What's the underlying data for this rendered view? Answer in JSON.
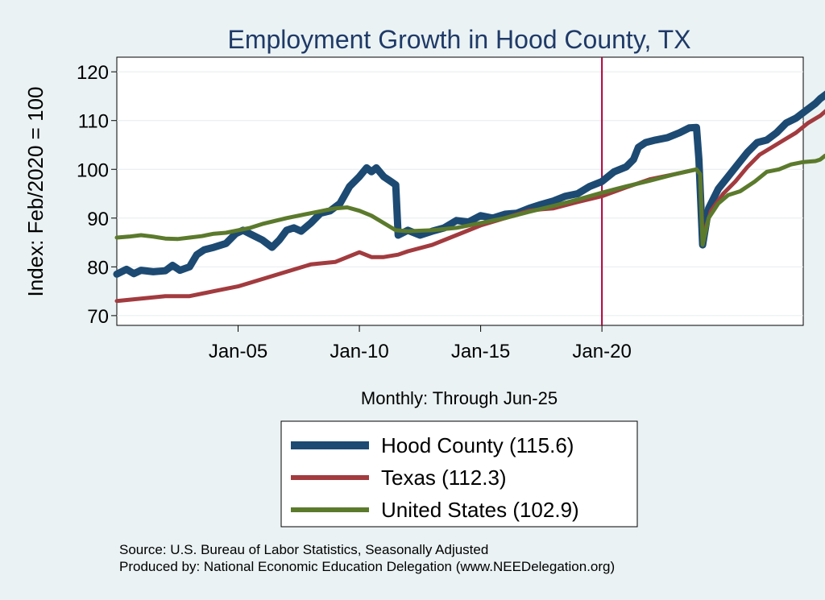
{
  "chart_data": {
    "type": "line",
    "title": "Employment Growth in Hood  County, TX",
    "xlabel": "Monthly: Through Jun-25",
    "ylabel": "Index: Feb/2020 = 100",
    "ylim": [
      68,
      123
    ],
    "xlim": [
      2000.0,
      2028.3
    ],
    "yticks": [
      70,
      80,
      90,
      100,
      110,
      120
    ],
    "xticks": [
      {
        "label": "Jan-05",
        "value": 2005.0
      },
      {
        "label": "Jan-10",
        "value": 2010.0
      },
      {
        "label": "Jan-15",
        "value": 2015.0
      },
      {
        "label": "Jan-20",
        "value": 2020.0
      }
    ],
    "reference_line": {
      "x": 2020.0,
      "color": "#b0003a"
    },
    "series": [
      {
        "name": "Hood  County",
        "legend": "Hood  County (115.6)",
        "end_label": "115.6",
        "color": "#1c4a72",
        "points": [
          [
            2000.0,
            78.5
          ],
          [
            2000.4,
            79.5
          ],
          [
            2000.7,
            78.6
          ],
          [
            2001.0,
            79.3
          ],
          [
            2001.5,
            79.0
          ],
          [
            2002.0,
            79.2
          ],
          [
            2002.3,
            80.3
          ],
          [
            2002.6,
            79.3
          ],
          [
            2003.0,
            80.0
          ],
          [
            2003.3,
            82.5
          ],
          [
            2003.6,
            83.5
          ],
          [
            2004.0,
            84.0
          ],
          [
            2004.5,
            84.8
          ],
          [
            2004.9,
            86.8
          ],
          [
            2005.2,
            87.5
          ],
          [
            2005.6,
            86.5
          ],
          [
            2006.0,
            85.5
          ],
          [
            2006.4,
            84.0
          ],
          [
            2006.7,
            85.5
          ],
          [
            2007.0,
            87.5
          ],
          [
            2007.3,
            88.0
          ],
          [
            2007.6,
            87.3
          ],
          [
            2008.0,
            89.0
          ],
          [
            2008.4,
            91.0
          ],
          [
            2008.8,
            91.5
          ],
          [
            2009.2,
            93.0
          ],
          [
            2009.6,
            96.5
          ],
          [
            2010.0,
            98.5
          ],
          [
            2010.3,
            100.3
          ],
          [
            2010.5,
            99.5
          ],
          [
            2010.7,
            100.3
          ],
          [
            2011.0,
            98.5
          ],
          [
            2011.3,
            97.5
          ],
          [
            2011.5,
            96.8
          ],
          [
            2011.6,
            86.5
          ],
          [
            2012.0,
            87.5
          ],
          [
            2012.5,
            86.5
          ],
          [
            2013.0,
            87.3
          ],
          [
            2013.5,
            88.0
          ],
          [
            2014.0,
            89.5
          ],
          [
            2014.5,
            89.2
          ],
          [
            2015.0,
            90.5
          ],
          [
            2015.5,
            90.0
          ],
          [
            2016.0,
            90.8
          ],
          [
            2016.5,
            91.0
          ],
          [
            2017.0,
            92.0
          ],
          [
            2017.5,
            92.8
          ],
          [
            2018.0,
            93.5
          ],
          [
            2018.5,
            94.5
          ],
          [
            2019.0,
            95.0
          ],
          [
            2019.5,
            96.5
          ],
          [
            2020.0,
            97.5
          ],
          [
            2020.5,
            99.5
          ],
          [
            2021.0,
            100.5
          ],
          [
            2021.3,
            102.0
          ],
          [
            2021.5,
            104.5
          ],
          [
            2021.8,
            105.5
          ],
          [
            2022.2,
            106.0
          ],
          [
            2022.7,
            106.5
          ],
          [
            2023.2,
            107.5
          ],
          [
            2023.6,
            108.5
          ],
          [
            2023.9,
            108.6
          ],
          [
            2024.0,
            102.0
          ],
          [
            2024.15,
            84.5
          ],
          [
            2024.4,
            92.0
          ],
          [
            2024.8,
            96.0
          ],
          [
            2025.2,
            98.5
          ],
          [
            2025.6,
            101.0
          ],
          [
            2026.0,
            103.5
          ],
          [
            2026.4,
            105.5
          ],
          [
            2026.8,
            106.0
          ],
          [
            2027.2,
            107.5
          ],
          [
            2027.6,
            109.5
          ],
          [
            2028.0,
            110.5
          ],
          [
            2028.4,
            112.0
          ],
          [
            2028.8,
            113.5
          ],
          [
            2029.0,
            114.5
          ],
          [
            2029.3,
            115.6
          ]
        ]
      },
      {
        "name": "Texas",
        "legend": "Texas (112.3)",
        "end_label": "112.3",
        "color": "#a23b3f",
        "points": [
          [
            2000.0,
            73.0
          ],
          [
            2001.0,
            73.5
          ],
          [
            2002.0,
            74.0
          ],
          [
            2003.0,
            74.0
          ],
          [
            2004.0,
            75.0
          ],
          [
            2005.0,
            76.0
          ],
          [
            2006.0,
            77.5
          ],
          [
            2007.0,
            79.0
          ],
          [
            2008.0,
            80.5
          ],
          [
            2009.0,
            81.0
          ],
          [
            2010.0,
            83.0
          ],
          [
            2010.5,
            82.0
          ],
          [
            2011.0,
            82.0
          ],
          [
            2011.6,
            82.5
          ],
          [
            2012.0,
            83.2
          ],
          [
            2013.0,
            84.5
          ],
          [
            2014.0,
            86.5
          ],
          [
            2015.0,
            88.5
          ],
          [
            2016.0,
            90.0
          ],
          [
            2017.0,
            91.5
          ],
          [
            2017.5,
            91.8
          ],
          [
            2018.0,
            92.0
          ],
          [
            2019.0,
            93.3
          ],
          [
            2020.0,
            94.5
          ],
          [
            2021.0,
            96.3
          ],
          [
            2022.0,
            98.0
          ],
          [
            2023.0,
            99.0
          ],
          [
            2023.9,
            100.0
          ],
          [
            2024.05,
            99.0
          ],
          [
            2024.15,
            86.0
          ],
          [
            2024.5,
            91.5
          ],
          [
            2025.0,
            95.0
          ],
          [
            2025.5,
            97.5
          ],
          [
            2026.0,
            100.5
          ],
          [
            2026.5,
            103.0
          ],
          [
            2027.0,
            104.5
          ],
          [
            2027.5,
            106.0
          ],
          [
            2028.0,
            107.5
          ],
          [
            2028.5,
            109.5
          ],
          [
            2029.0,
            111.0
          ],
          [
            2029.3,
            112.3
          ]
        ]
      },
      {
        "name": "United States",
        "legend": "United States (102.9)",
        "end_label": "102.9",
        "color": "#5b7a2c",
        "points": [
          [
            2000.0,
            86.0
          ],
          [
            2000.5,
            86.2
          ],
          [
            2001.0,
            86.5
          ],
          [
            2001.5,
            86.2
          ],
          [
            2002.0,
            85.8
          ],
          [
            2002.5,
            85.7
          ],
          [
            2003.0,
            86.0
          ],
          [
            2003.5,
            86.3
          ],
          [
            2004.0,
            86.8
          ],
          [
            2004.5,
            87.0
          ],
          [
            2005.0,
            87.5
          ],
          [
            2005.5,
            88.0
          ],
          [
            2006.0,
            88.8
          ],
          [
            2007.0,
            90.0
          ],
          [
            2008.0,
            91.0
          ],
          [
            2009.0,
            92.0
          ],
          [
            2009.5,
            92.2
          ],
          [
            2010.0,
            91.5
          ],
          [
            2010.5,
            90.5
          ],
          [
            2011.0,
            89.0
          ],
          [
            2011.5,
            87.5
          ],
          [
            2012.0,
            87.3
          ],
          [
            2013.0,
            87.5
          ],
          [
            2014.0,
            88.0
          ],
          [
            2015.0,
            89.0
          ],
          [
            2016.0,
            90.0
          ],
          [
            2017.0,
            91.3
          ],
          [
            2018.0,
            92.5
          ],
          [
            2019.0,
            93.8
          ],
          [
            2020.0,
            95.2
          ],
          [
            2021.0,
            96.5
          ],
          [
            2022.0,
            97.7
          ],
          [
            2023.0,
            99.0
          ],
          [
            2023.9,
            100.0
          ],
          [
            2024.05,
            99.0
          ],
          [
            2024.15,
            84.5
          ],
          [
            2024.4,
            90.0
          ],
          [
            2024.8,
            93.0
          ],
          [
            2025.2,
            94.7
          ],
          [
            2025.7,
            95.5
          ],
          [
            2026.3,
            97.5
          ],
          [
            2026.8,
            99.5
          ],
          [
            2027.3,
            100.0
          ],
          [
            2027.8,
            101.0
          ],
          [
            2028.3,
            101.5
          ],
          [
            2028.8,
            101.7
          ],
          [
            2029.0,
            102.0
          ],
          [
            2029.2,
            102.8
          ],
          [
            2029.3,
            102.9
          ]
        ]
      }
    ]
  },
  "source_text": "Source: U.S. Bureau of Labor Statistics, Seasonally Adjusted",
  "produced_by": "Produced by: National Economic Education Delegation (www.NEEDelegation.org)"
}
